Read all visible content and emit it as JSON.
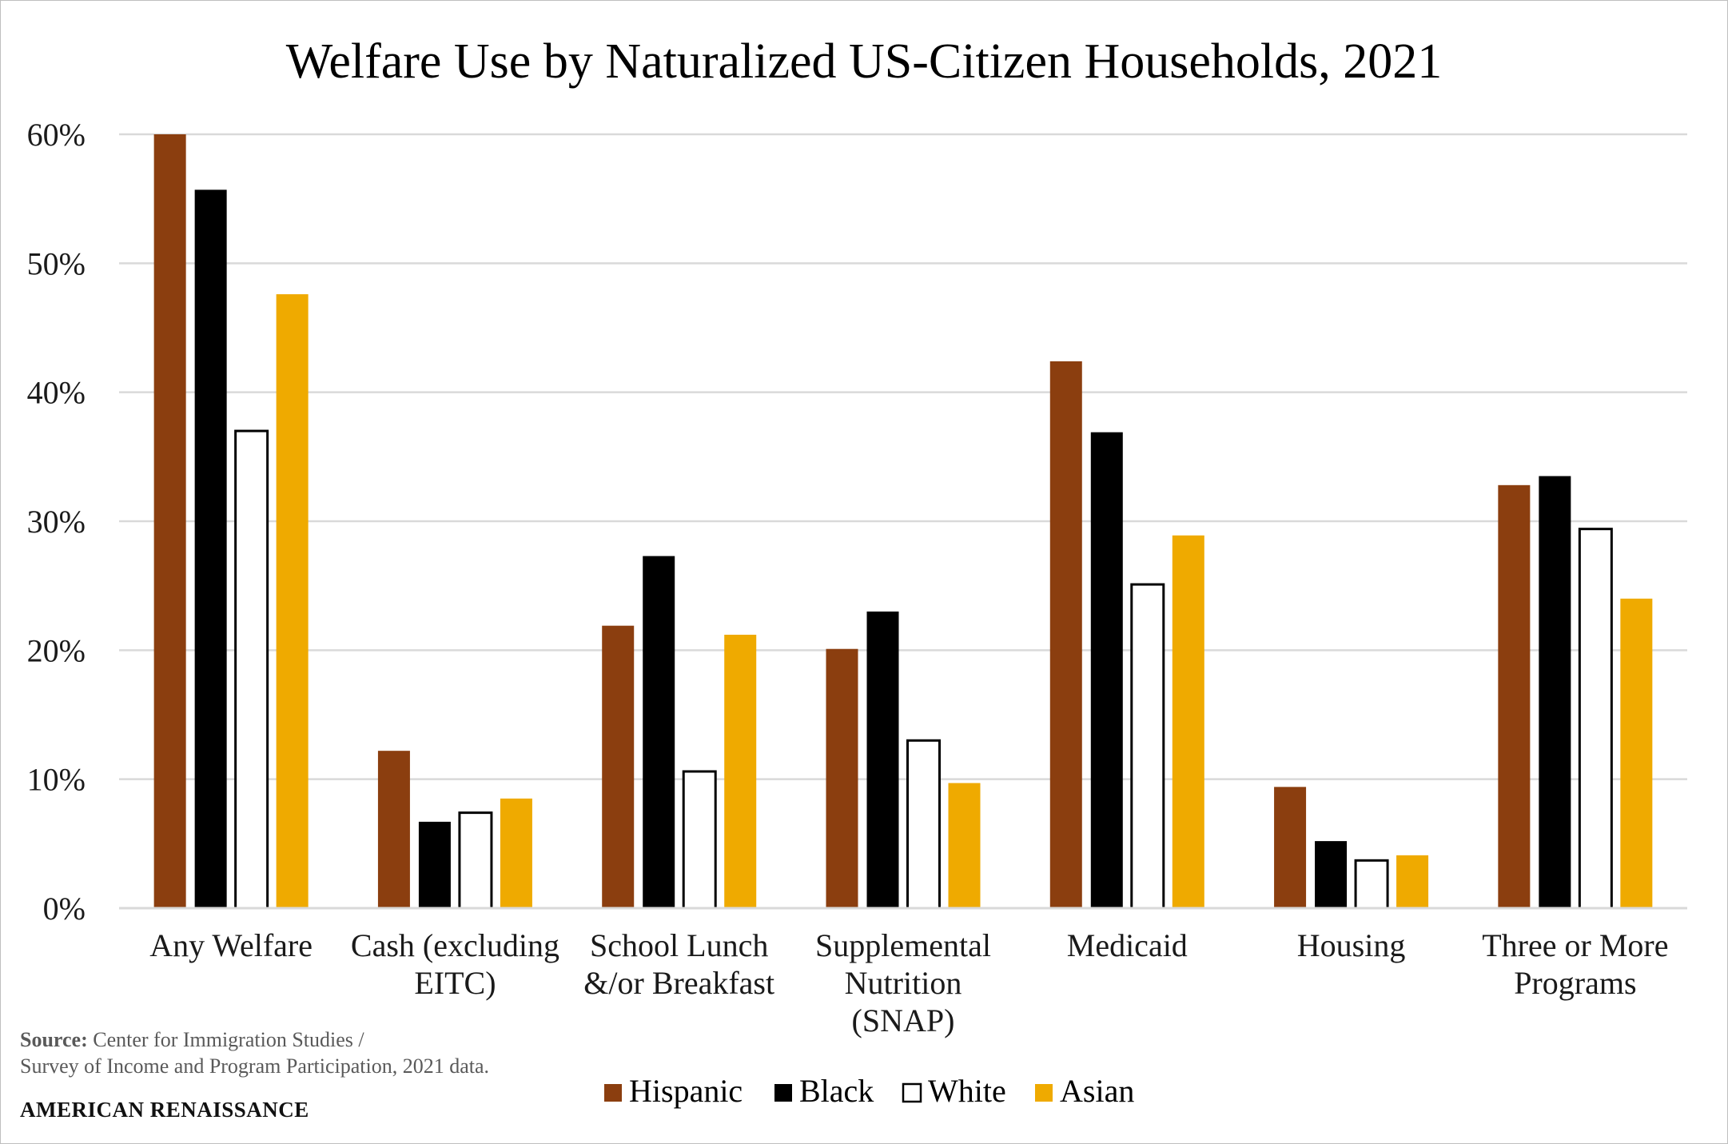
{
  "chart_data": {
    "type": "bar",
    "title": "Welfare Use by Naturalized US-Citizen Households, 2021",
    "categories": [
      [
        "Any Welfare"
      ],
      [
        "Cash (excluding",
        "EITC)"
      ],
      [
        "School Lunch",
        "&/or Breakfast"
      ],
      [
        "Supplemental",
        "Nutrition",
        "(SNAP)"
      ],
      [
        "Medicaid"
      ],
      [
        "Housing"
      ],
      [
        "Three or More",
        "Programs"
      ]
    ],
    "series": [
      {
        "name": "Hispanic",
        "color": "#8B3E0F",
        "values": [
          60.0,
          12.2,
          21.9,
          20.1,
          42.4,
          9.4,
          32.8
        ]
      },
      {
        "name": "Black",
        "color": "#000000",
        "values": [
          55.7,
          6.7,
          27.3,
          23.0,
          36.9,
          5.2,
          33.5
        ]
      },
      {
        "name": "White",
        "color": "#ffffff",
        "values": [
          37.0,
          7.4,
          10.6,
          13.0,
          25.1,
          3.7,
          29.4
        ]
      },
      {
        "name": "Asian",
        "color": "#EFAA00",
        "values": [
          47.6,
          8.5,
          21.2,
          9.7,
          28.9,
          4.1,
          24.0
        ]
      }
    ],
    "yticks": [
      "0%",
      "10%",
      "20%",
      "30%",
      "40%",
      "50%",
      "60%"
    ],
    "ylim": [
      0,
      60
    ],
    "grid": true,
    "legend": "bottom"
  },
  "footer": {
    "source_label": "Source:",
    "source_line1": "Center for Immigration Studies /",
    "source_line2": "Survey of Income and Program Participation, 2021 data.",
    "brand": "AMERICAN RENAISSANCE"
  }
}
